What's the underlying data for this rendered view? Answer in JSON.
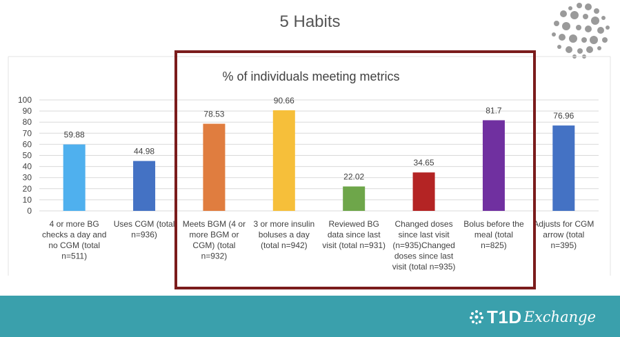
{
  "slide": {
    "title": "5 Habits",
    "brand_name": "T1D",
    "brand_suffix": "Exchange"
  },
  "colors": {
    "footer": "#3aa0ac",
    "highlight_box": "#7b1c1c",
    "gridline": "#d9d9d9"
  },
  "chart_data": {
    "type": "bar",
    "title": "% of individuals meeting metrics",
    "categories": [
      "4 or more BG checks a day and no CGM (total n=511)",
      "Uses CGM (total n=936)",
      "Meets BGM (4 or more BGM or CGM) (total n=932)",
      "3 or more insulin boluses a day (total n=942)",
      "Reviewed BG data since last visit (total n=931)",
      "Changed doses since last visit (n=935)Changed doses since last visit (total n=935)",
      "Bolus before the meal (total n=825)",
      "Adjusts for CGM arrow (total n=395)"
    ],
    "category_lines": [
      [
        "4 or more BG",
        "checks a day and",
        "no CGM (total",
        "n=511)"
      ],
      [
        "Uses CGM (total",
        "n=936)"
      ],
      [
        "Meets BGM (4 or",
        "more BGM or",
        "CGM) (total",
        "n=932)"
      ],
      [
        "3 or more insulin",
        "boluses a day",
        "(total n=942)"
      ],
      [
        "Reviewed BG",
        "data since last",
        "visit (total n=931)"
      ],
      [
        "Changed doses",
        "since last visit",
        "(n=935)Changed",
        "doses since last",
        "visit (total n=935)"
      ],
      [
        "Bolus before the",
        "meal (total",
        "n=825)"
      ],
      [
        "Adjusts for CGM",
        "arrow (total",
        "n=395)"
      ]
    ],
    "values": [
      59.88,
      44.98,
      78.53,
      90.66,
      22.02,
      34.65,
      81.7,
      76.96
    ],
    "value_labels": [
      "59.88",
      "44.98",
      "78.53",
      "90.66",
      "22.02",
      "34.65",
      "81.7",
      "76.96"
    ],
    "colors": [
      "#4fb0ee",
      "#4472c4",
      "#e07d3f",
      "#f6bf3a",
      "#6ea64a",
      "#b42424",
      "#7030a0",
      "#4472c4"
    ],
    "ylim": [
      0,
      100
    ],
    "yticks": [
      "0",
      "10",
      "20",
      "30",
      "40",
      "50",
      "60",
      "70",
      "80",
      "90",
      "100"
    ],
    "grid": true,
    "highlighted_range": [
      2,
      6
    ]
  }
}
